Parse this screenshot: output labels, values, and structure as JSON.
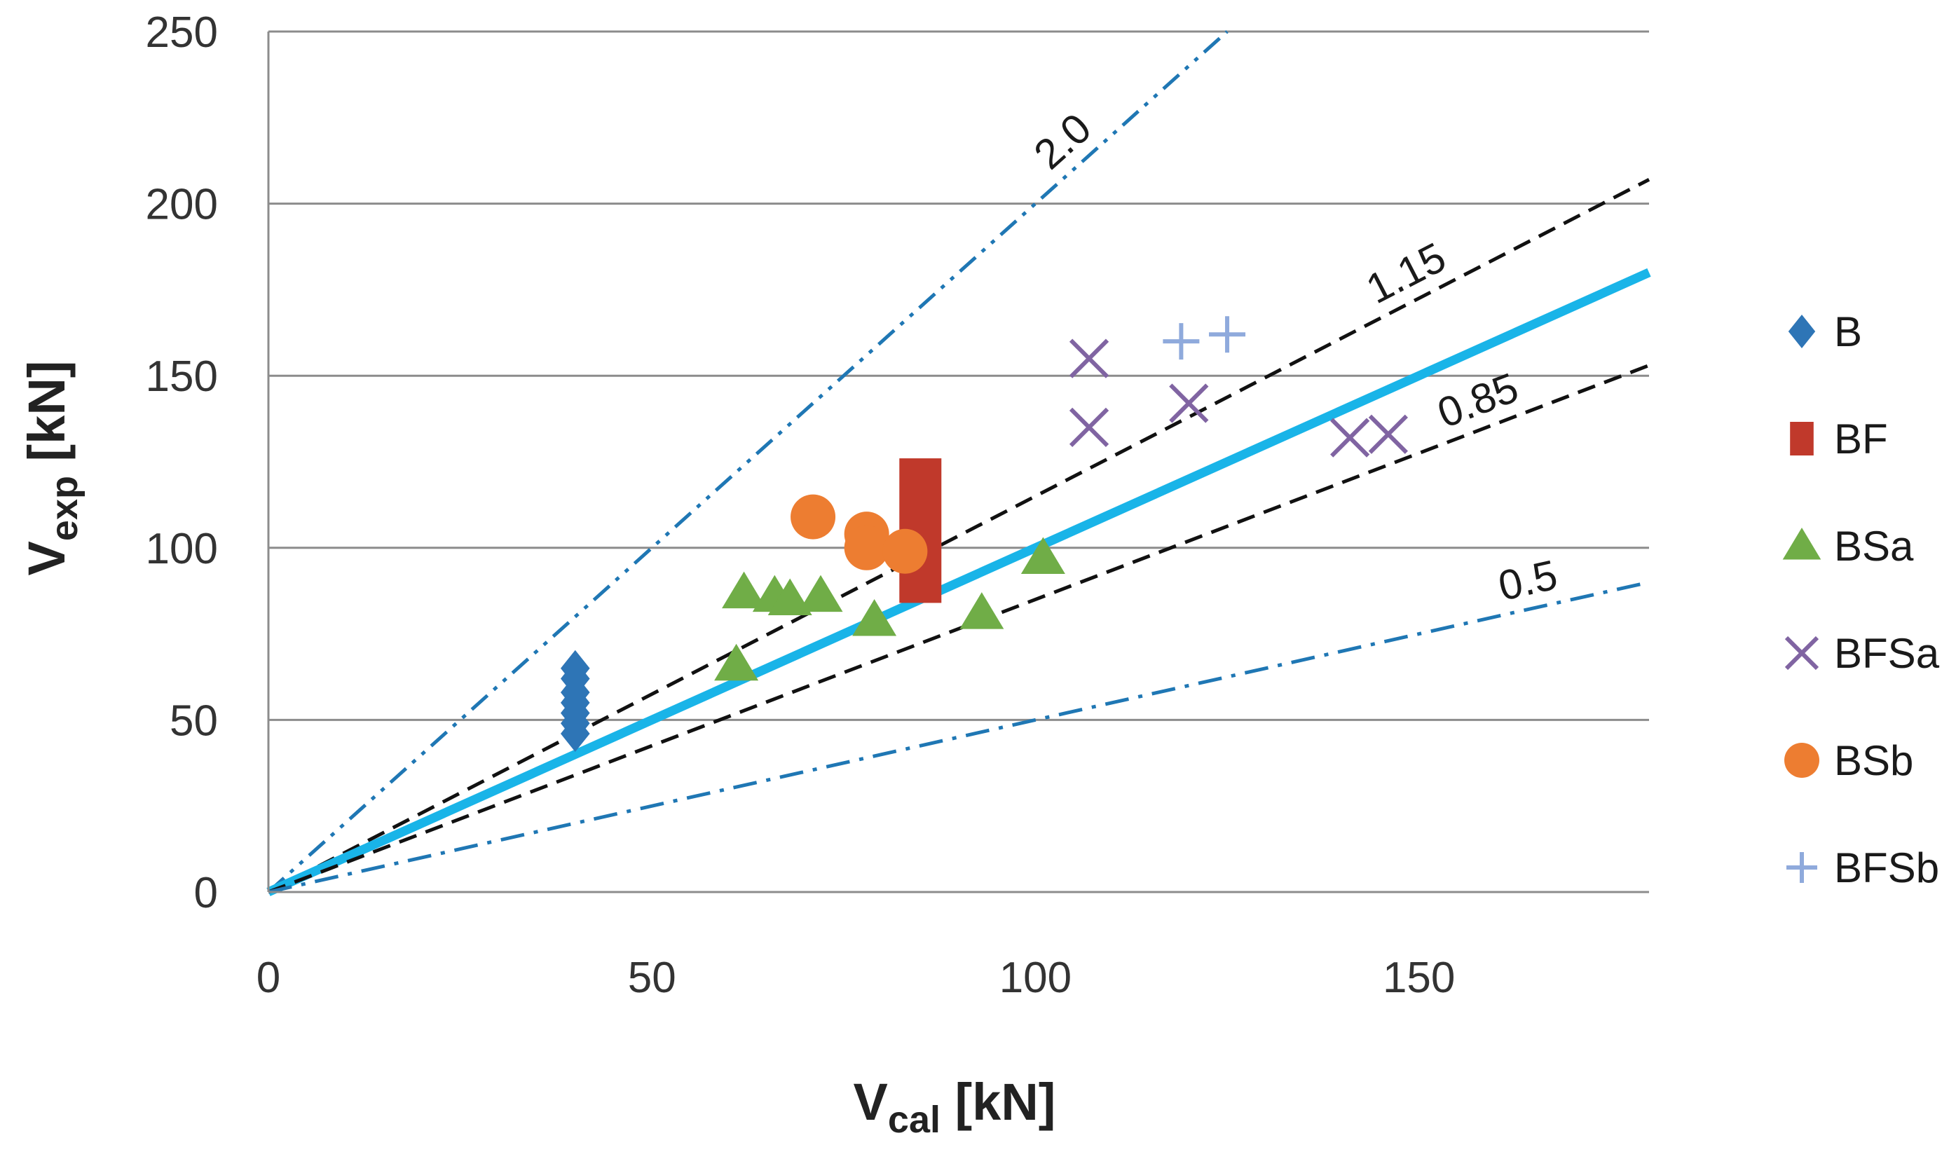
{
  "chart_data": {
    "type": "scatter",
    "xlabel": {
      "main": "V",
      "sub": "cal",
      "unit": " [kN]"
    },
    "ylabel": {
      "main": "V",
      "sub": "exp",
      "unit": " [kN]"
    },
    "xlim": [
      0,
      180
    ],
    "ylim": [
      0,
      250
    ],
    "xticks": [
      0,
      50,
      100,
      150
    ],
    "yticks": [
      0,
      50,
      100,
      150,
      200,
      250
    ],
    "grid": "horizontal",
    "legend_position": "right",
    "ref_lines": [
      {
        "name": "2.0",
        "slope": 2.0,
        "label": "2.0",
        "style": "dash-dot-dot",
        "color": "#1f77b4",
        "label_at_x": 106
      },
      {
        "name": "1.15",
        "slope": 1.15,
        "label": "1.15",
        "style": "dashed",
        "color": "#111111",
        "label_at_x": 150
      },
      {
        "name": "1.0",
        "slope": 1.0,
        "label": "",
        "style": "solid",
        "color": "#19b4e8"
      },
      {
        "name": "0.85",
        "slope": 0.85,
        "label": "0.85",
        "style": "dashed",
        "color": "#111111",
        "label_at_x": 159
      },
      {
        "name": "0.5",
        "slope": 0.5,
        "label": "0.5",
        "style": "dash-dot",
        "color": "#1f77b4",
        "label_at_x": 165
      }
    ],
    "series": [
      {
        "name": "B",
        "marker": "diamond",
        "color": "#2e75b6",
        "points": [
          [
            40,
            65
          ],
          [
            40,
            62
          ],
          [
            40,
            58
          ],
          [
            40,
            55
          ],
          [
            40,
            52
          ],
          [
            40,
            49
          ],
          [
            40,
            46
          ]
        ]
      },
      {
        "name": "BF",
        "marker": "rect",
        "color": "#c0392b",
        "range": {
          "x": 85,
          "y_min": 84,
          "y_max": 126
        }
      },
      {
        "name": "BSa",
        "marker": "triangle",
        "color": "#70ad47",
        "points": [
          [
            61,
            66
          ],
          [
            62,
            87
          ],
          [
            66,
            86
          ],
          [
            68,
            85
          ],
          [
            72,
            86
          ],
          [
            79,
            79
          ],
          [
            93,
            81
          ],
          [
            101,
            97
          ]
        ]
      },
      {
        "name": "BFSa",
        "marker": "x",
        "color": "#8064a2",
        "points": [
          [
            107,
            155
          ],
          [
            107,
            135
          ],
          [
            120,
            142
          ],
          [
            141,
            132
          ],
          [
            146,
            133
          ]
        ]
      },
      {
        "name": "BSb",
        "marker": "circle",
        "color": "#ed7d31",
        "points": [
          [
            71,
            109
          ],
          [
            78,
            104
          ],
          [
            78,
            100
          ],
          [
            83,
            99
          ]
        ]
      },
      {
        "name": "BFSb",
        "marker": "plus",
        "color": "#8faadc",
        "points": [
          [
            119,
            160
          ],
          [
            125,
            162
          ]
        ]
      }
    ]
  }
}
